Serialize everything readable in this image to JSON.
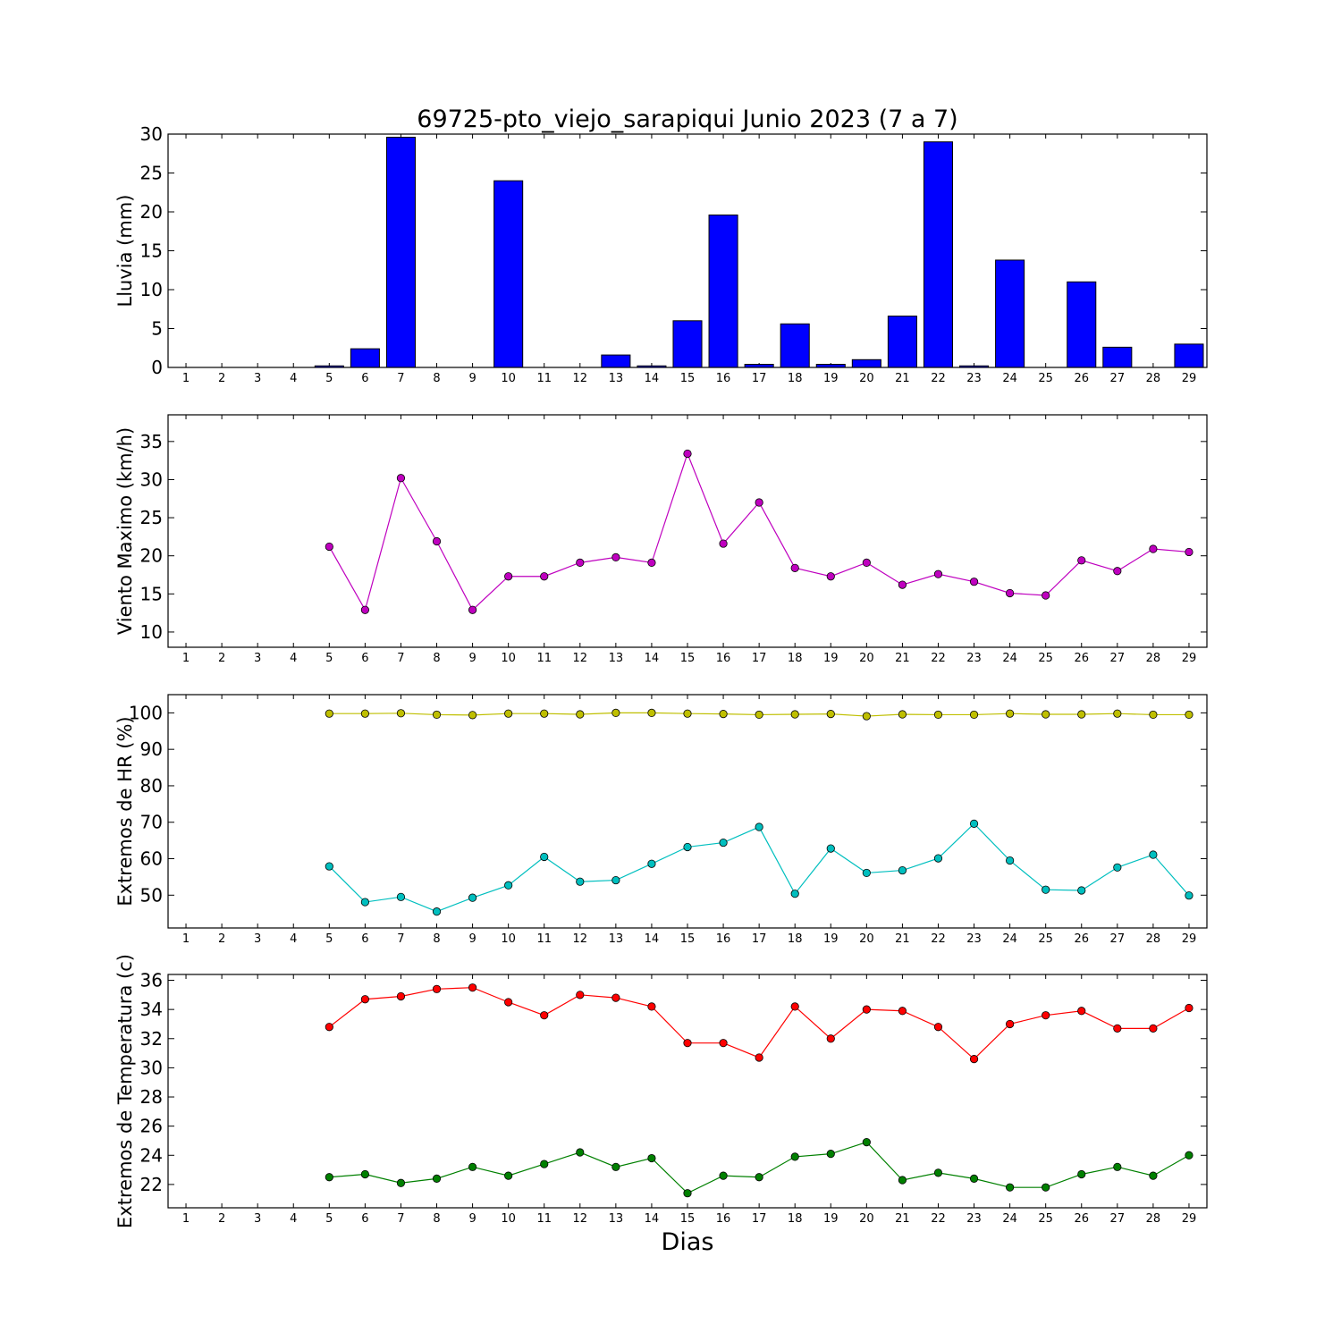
{
  "title": "69725-pto_viejo_sarapiqui Junio 2023  (7 a 7)",
  "xlabel": "Dias",
  "days": [
    1,
    2,
    3,
    4,
    5,
    6,
    7,
    8,
    9,
    10,
    11,
    12,
    13,
    14,
    15,
    16,
    17,
    18,
    19,
    20,
    21,
    22,
    23,
    24,
    25,
    26,
    27,
    28,
    29
  ],
  "chart_data": [
    {
      "type": "bar",
      "ylabel": "Lluvia (mm)",
      "ylim": [
        0,
        30
      ],
      "yticks": [
        0,
        5,
        10,
        15,
        20,
        25,
        30
      ],
      "x": [
        5,
        6,
        7,
        8,
        9,
        10,
        11,
        12,
        13,
        14,
        15,
        16,
        17,
        18,
        19,
        20,
        21,
        22,
        23,
        24,
        25,
        26,
        27,
        28,
        29
      ],
      "values": [
        0.2,
        2.4,
        29.6,
        0,
        0,
        24.0,
        0,
        0,
        1.6,
        0.2,
        6.0,
        19.6,
        0.4,
        5.6,
        0.4,
        1.0,
        6.6,
        29.0,
        0.2,
        13.8,
        0,
        11.0,
        2.6,
        0,
        3.0
      ],
      "color": "#0000ff"
    },
    {
      "type": "line",
      "ylabel": "Viento Maximo (km/h)",
      "ylim": [
        8,
        38.5
      ],
      "yticks": [
        10,
        15,
        20,
        25,
        30,
        35
      ],
      "x": [
        5,
        6,
        7,
        8,
        9,
        10,
        11,
        12,
        13,
        14,
        15,
        16,
        17,
        18,
        19,
        20,
        21,
        22,
        23,
        24,
        25,
        26,
        27,
        28,
        29
      ],
      "series": [
        {
          "values": [
            21.2,
            12.9,
            30.2,
            21.9,
            12.9,
            17.3,
            17.3,
            19.1,
            19.8,
            19.1,
            33.4,
            21.6,
            27.0,
            18.4,
            17.3,
            19.1,
            16.2,
            17.6,
            16.6,
            15.1,
            14.8,
            19.4,
            18.0,
            20.9,
            20.5
          ],
          "color": "#bf00bf"
        }
      ]
    },
    {
      "type": "line",
      "ylabel": "Extremos de HR (%)",
      "ylim": [
        41,
        105
      ],
      "yticks": [
        50,
        60,
        70,
        80,
        90,
        100
      ],
      "x": [
        5,
        6,
        7,
        8,
        9,
        10,
        11,
        12,
        13,
        14,
        15,
        16,
        17,
        18,
        19,
        20,
        21,
        22,
        23,
        24,
        25,
        26,
        27,
        28,
        29
      ],
      "series": [
        {
          "values": [
            99.8,
            99.8,
            99.9,
            99.5,
            99.4,
            99.8,
            99.8,
            99.6,
            100.0,
            100.0,
            99.8,
            99.7,
            99.5,
            99.6,
            99.7,
            99.1,
            99.6,
            99.5,
            99.5,
            99.8,
            99.6,
            99.6,
            99.8,
            99.5,
            99.5
          ],
          "color": "#bfbf00"
        },
        {
          "values": [
            57.9,
            48.1,
            49.5,
            45.5,
            49.3,
            52.7,
            60.5,
            53.7,
            54.1,
            58.6,
            63.2,
            64.4,
            68.7,
            50.4,
            62.8,
            56.1,
            56.8,
            60.1,
            69.6,
            59.5,
            51.5,
            51.3,
            57.6,
            61.1,
            49.9
          ],
          "color": "#00bfbf"
        }
      ]
    },
    {
      "type": "line",
      "ylabel": "Extremos de Temperatura (c)",
      "ylim": [
        20.4,
        36.4
      ],
      "yticks": [
        22,
        24,
        26,
        28,
        30,
        32,
        34,
        36
      ],
      "x": [
        5,
        6,
        7,
        8,
        9,
        10,
        11,
        12,
        13,
        14,
        15,
        16,
        17,
        18,
        19,
        20,
        21,
        22,
        23,
        24,
        25,
        26,
        27,
        28,
        29
      ],
      "series": [
        {
          "values": [
            32.8,
            34.7,
            34.9,
            35.4,
            35.5,
            34.5,
            33.6,
            35.0,
            34.8,
            34.2,
            31.7,
            31.7,
            30.7,
            34.2,
            32.0,
            34.0,
            33.9,
            32.8,
            30.6,
            33.0,
            33.6,
            33.9,
            32.7,
            32.7,
            34.1
          ],
          "color": "#ff0000"
        },
        {
          "values": [
            22.5,
            22.7,
            22.1,
            22.4,
            23.2,
            22.6,
            23.4,
            24.2,
            23.2,
            23.8,
            21.4,
            22.6,
            22.5,
            23.9,
            24.1,
            24.9,
            22.3,
            22.8,
            22.4,
            21.8,
            21.8,
            22.7,
            23.2,
            22.6,
            24.0
          ],
          "color": "#008000"
        }
      ]
    }
  ]
}
